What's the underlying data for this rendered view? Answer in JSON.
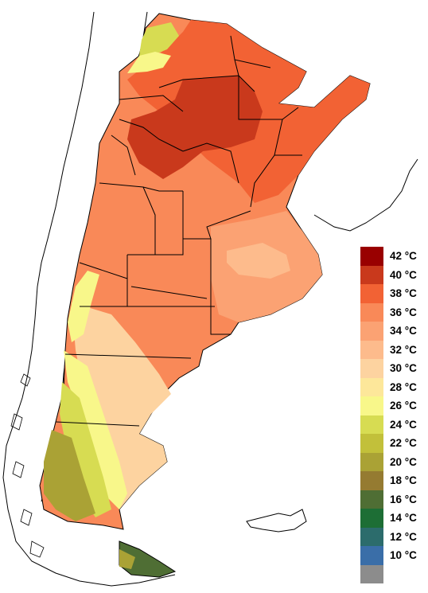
{
  "legend": {
    "items": [
      {
        "label": "42 °C",
        "color": "#990000"
      },
      {
        "label": "40 °C",
        "color": "#c9391c"
      },
      {
        "label": "38 °C",
        "color": "#f26234"
      },
      {
        "label": "36 °C",
        "color": "#f98958"
      },
      {
        "label": "34 °C",
        "color": "#fba273"
      },
      {
        "label": "32 °C",
        "color": "#fdbb8c"
      },
      {
        "label": "30 °C",
        "color": "#fdd3a0"
      },
      {
        "label": "28 °C",
        "color": "#fde79a"
      },
      {
        "label": "26 °C",
        "color": "#f8f78a"
      },
      {
        "label": "24 °C",
        "color": "#d7dc52"
      },
      {
        "label": "22 °C",
        "color": "#c2c03a"
      },
      {
        "label": "20 °C",
        "color": "#aaa235"
      },
      {
        "label": "18 °C",
        "color": "#957b31"
      },
      {
        "label": "16 °C",
        "color": "#4f6e34"
      },
      {
        "label": "14 °C",
        "color": "#1d6e35"
      },
      {
        "label": "12 °C",
        "color": "#2c6c6c"
      },
      {
        "label": "10 °C",
        "color": "#3a6ea8"
      },
      {
        "label": "",
        "color": "#8c8c8c"
      }
    ]
  },
  "map": {
    "zones": {
      "north_hot": "#f26234",
      "core_hot": "#c9391c",
      "mid": "#f98958",
      "south_mid": "#fba273",
      "pampas_light": "#fdbb8c",
      "patagonia_yellow": "#f8f78a",
      "patagonia_green": "#d7dc52",
      "andes_olive": "#aaa235",
      "tierra": "#4f6e34"
    }
  }
}
